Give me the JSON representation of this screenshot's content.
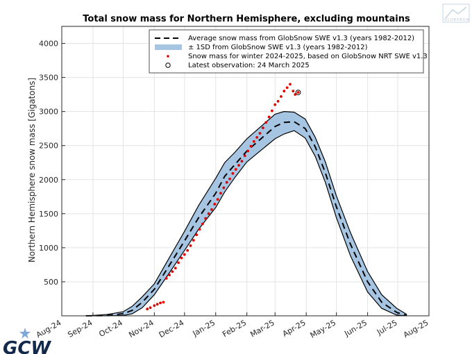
{
  "chart_data": {
    "type": "line",
    "title": "Total snow mass for Northern Hemisphere, excluding mountains",
    "xlabel": "",
    "ylabel": "Northern Hemisphere snow mass [Gigatons]",
    "x_ticks": [
      "Aug-24",
      "Sep-24",
      "Oct-24",
      "Nov-24",
      "Dec-24",
      "Jan-25",
      "Feb-25",
      "Mar-25",
      "Apr-25",
      "May-25",
      "Jun-25",
      "Jul-25",
      "Aug-25"
    ],
    "xlim": [
      "2024-08-01",
      "2025-08-01"
    ],
    "y_ticks": [
      500,
      1000,
      1500,
      2000,
      2500,
      3000,
      3500,
      4000
    ],
    "ylim": [
      0,
      4250
    ],
    "grid": true,
    "legend": {
      "placement": "top-right",
      "entries": [
        "Average snow mass from GlobSnow SWE v1.3 (years 1982-2012)",
        "± 1SD from GlobSnow SWE v1.3 (years 1982-2012)",
        "Snow mass for winter 2024-2025, based on GlobSnow NRT SWE v1.3",
        "Latest observation: 24 March 2025"
      ]
    },
    "series": [
      {
        "name": "Average snow mass from GlobSnow SWE v1.3 (years 1982-2012)",
        "style": "dashed",
        "color": "#000000",
        "x": [
          "2024-08-25",
          "2024-09-15",
          "2024-10-01",
          "2024-10-10",
          "2024-10-20",
          "2024-11-01",
          "2024-11-15",
          "2024-12-01",
          "2024-12-15",
          "2025-01-01",
          "2025-01-10",
          "2025-01-20",
          "2025-02-01",
          "2025-02-15",
          "2025-03-01",
          "2025-03-10",
          "2025-03-20",
          "2025-03-31",
          "2025-04-10",
          "2025-04-20",
          "2025-05-01",
          "2025-05-15",
          "2025-06-01",
          "2025-06-15",
          "2025-06-30",
          "2025-07-10"
        ],
        "y": [
          0,
          5,
          30,
          80,
          200,
          390,
          720,
          1100,
          1440,
          1800,
          2050,
          2220,
          2420,
          2600,
          2780,
          2840,
          2850,
          2750,
          2480,
          2100,
          1600,
          1050,
          500,
          200,
          50,
          5
        ]
      },
      {
        "name": "± 1SD from GlobSnow SWE v1.3 (years 1982-2012)",
        "style": "band",
        "color": "#a6c5e3",
        "x": [
          "2024-08-25",
          "2024-09-15",
          "2024-10-01",
          "2024-10-10",
          "2024-10-20",
          "2024-11-01",
          "2024-11-15",
          "2024-12-01",
          "2024-12-15",
          "2025-01-01",
          "2025-01-10",
          "2025-01-20",
          "2025-02-01",
          "2025-02-15",
          "2025-03-01",
          "2025-03-10",
          "2025-03-20",
          "2025-03-31",
          "2025-04-10",
          "2025-04-20",
          "2025-05-01",
          "2025-05-15",
          "2025-06-01",
          "2025-06-15",
          "2025-06-30",
          "2025-07-10"
        ],
        "upper": [
          0,
          20,
          60,
          140,
          280,
          470,
          830,
          1240,
          1620,
          2020,
          2250,
          2400,
          2600,
          2780,
          2960,
          3000,
          2990,
          2890,
          2620,
          2260,
          1760,
          1220,
          650,
          310,
          110,
          20
        ],
        "lower": [
          0,
          0,
          5,
          30,
          120,
          310,
          610,
          960,
          1270,
          1590,
          1820,
          2030,
          2260,
          2430,
          2600,
          2670,
          2720,
          2610,
          2340,
          1960,
          1440,
          880,
          350,
          110,
          10,
          0
        ]
      },
      {
        "name": "Snow mass for winter 2024-2025, based on GlobSnow NRT SWE v1.3",
        "style": "scatter",
        "color": "#e00000",
        "x": [
          "2024-10-25",
          "2024-10-28",
          "2024-11-01",
          "2024-11-04",
          "2024-11-07",
          "2024-11-10",
          "2024-11-13",
          "2024-11-16",
          "2024-11-19",
          "2024-11-22",
          "2024-11-25",
          "2024-11-28",
          "2024-12-01",
          "2024-12-04",
          "2024-12-07",
          "2024-12-10",
          "2024-12-13",
          "2024-12-16",
          "2024-12-19",
          "2024-12-22",
          "2024-12-25",
          "2024-12-28",
          "2024-12-31",
          "2025-01-03",
          "2025-01-06",
          "2025-01-09",
          "2025-01-12",
          "2025-01-15",
          "2025-01-18",
          "2025-01-21",
          "2025-01-24",
          "2025-01-27",
          "2025-01-30",
          "2025-02-02",
          "2025-02-05",
          "2025-02-08",
          "2025-02-11",
          "2025-02-14",
          "2025-02-17",
          "2025-02-20",
          "2025-02-23",
          "2025-02-26",
          "2025-03-01",
          "2025-03-04",
          "2025-03-07",
          "2025-03-10",
          "2025-03-13",
          "2025-03-16",
          "2025-03-19",
          "2025-03-21",
          "2025-03-24"
        ],
        "y": [
          100,
          120,
          150,
          170,
          190,
          200,
          550,
          600,
          650,
          700,
          780,
          850,
          900,
          960,
          1030,
          1110,
          1190,
          1270,
          1350,
          1430,
          1500,
          1560,
          1640,
          1710,
          1800,
          1880,
          1960,
          2010,
          2090,
          2150,
          2210,
          2270,
          2350,
          2420,
          2490,
          2560,
          2620,
          2680,
          2760,
          2840,
          2920,
          3010,
          3100,
          3150,
          3220,
          3300,
          3350,
          3400,
          3300,
          3250,
          3280
        ]
      },
      {
        "name": "Latest observation: 24 March 2025",
        "style": "marker",
        "x": [
          "2025-03-24"
        ],
        "y": [
          3280
        ]
      }
    ]
  },
  "branding": {
    "logo_text": "GCW",
    "watermark_text": "GLOBSNOW"
  }
}
